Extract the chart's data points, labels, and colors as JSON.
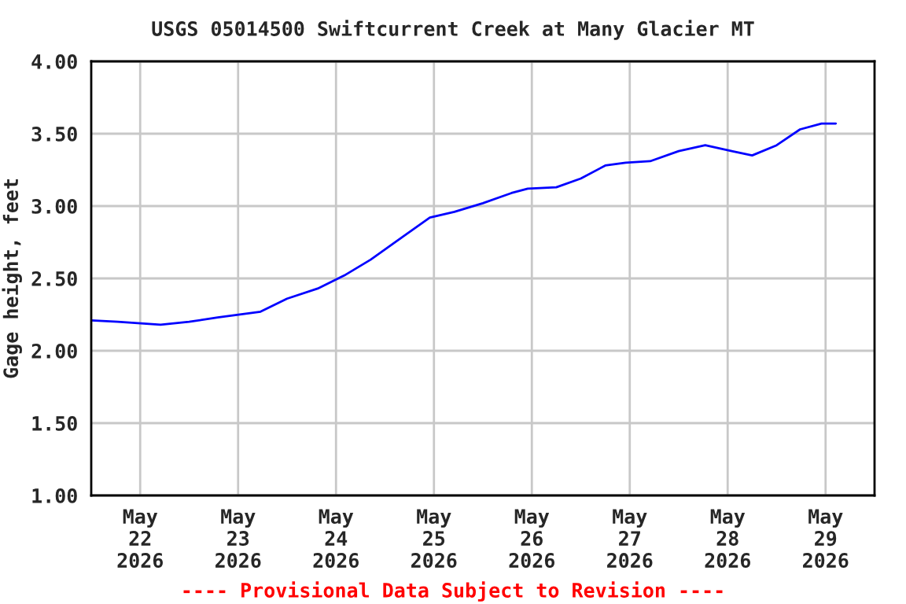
{
  "chart_data": {
    "type": "line",
    "title": "USGS 05014500 Swiftcurrent Creek at Many Glacier MT",
    "ylabel": "Gage height, feet",
    "x": [
      "2026-05-21T12:00",
      "2026-05-21T18:30",
      "2026-05-22T05:00",
      "2026-05-22T12:00",
      "2026-05-22T19:00",
      "2026-05-23T05:30",
      "2026-05-23T12:00",
      "2026-05-23T19:30",
      "2026-05-24T02:00",
      "2026-05-24T08:30",
      "2026-05-24T16:00",
      "2026-05-24T23:00",
      "2026-05-25T05:00",
      "2026-05-25T12:00",
      "2026-05-25T19:00",
      "2026-05-25T23:00",
      "2026-05-26T06:00",
      "2026-05-26T12:00",
      "2026-05-26T18:00",
      "2026-05-26T23:00",
      "2026-05-27T05:00",
      "2026-05-27T12:00",
      "2026-05-27T18:30",
      "2026-05-28T01:00",
      "2026-05-28T06:00",
      "2026-05-28T12:00",
      "2026-05-28T17:45",
      "2026-05-28T23:00",
      "2026-05-29T02:30"
    ],
    "series": [
      {
        "color": "#0000ff",
        "values": [
          2.21,
          2.2,
          2.18,
          2.2,
          2.23,
          2.27,
          2.36,
          2.43,
          2.52,
          2.63,
          2.78,
          2.92,
          2.96,
          3.02,
          3.09,
          3.12,
          3.13,
          3.19,
          3.28,
          3.3,
          3.31,
          3.38,
          3.42,
          3.38,
          3.35,
          3.42,
          3.53,
          3.57,
          3.57
        ]
      }
    ],
    "xlim": [
      "2026-05-21T12:00",
      "2026-05-29T12:00"
    ],
    "xticks": [
      {
        "value": "2026-05-22",
        "label": "May\n22\n2026"
      },
      {
        "value": "2026-05-23",
        "label": "May\n23\n2026"
      },
      {
        "value": "2026-05-24",
        "label": "May\n24\n2026"
      },
      {
        "value": "2026-05-25",
        "label": "May\n25\n2026"
      },
      {
        "value": "2026-05-26",
        "label": "May\n26\n2026"
      },
      {
        "value": "2026-05-27",
        "label": "May\n27\n2026"
      },
      {
        "value": "2026-05-28",
        "label": "May\n28\n2026"
      },
      {
        "value": "2026-05-29",
        "label": "May\n29\n2026"
      }
    ],
    "ylim": [
      1.0,
      4.0
    ],
    "yticks": [
      {
        "value": 1.0,
        "label": "1.00"
      },
      {
        "value": 1.5,
        "label": "1.50"
      },
      {
        "value": 2.0,
        "label": "2.00"
      },
      {
        "value": 2.5,
        "label": "2.50"
      },
      {
        "value": 3.0,
        "label": "3.00"
      },
      {
        "value": 3.5,
        "label": "3.50"
      },
      {
        "value": 4.0,
        "label": "4.00"
      }
    ],
    "grid": true,
    "legend": false,
    "annotations": [
      "---- Provisional Data Subject to Revision ----"
    ]
  }
}
